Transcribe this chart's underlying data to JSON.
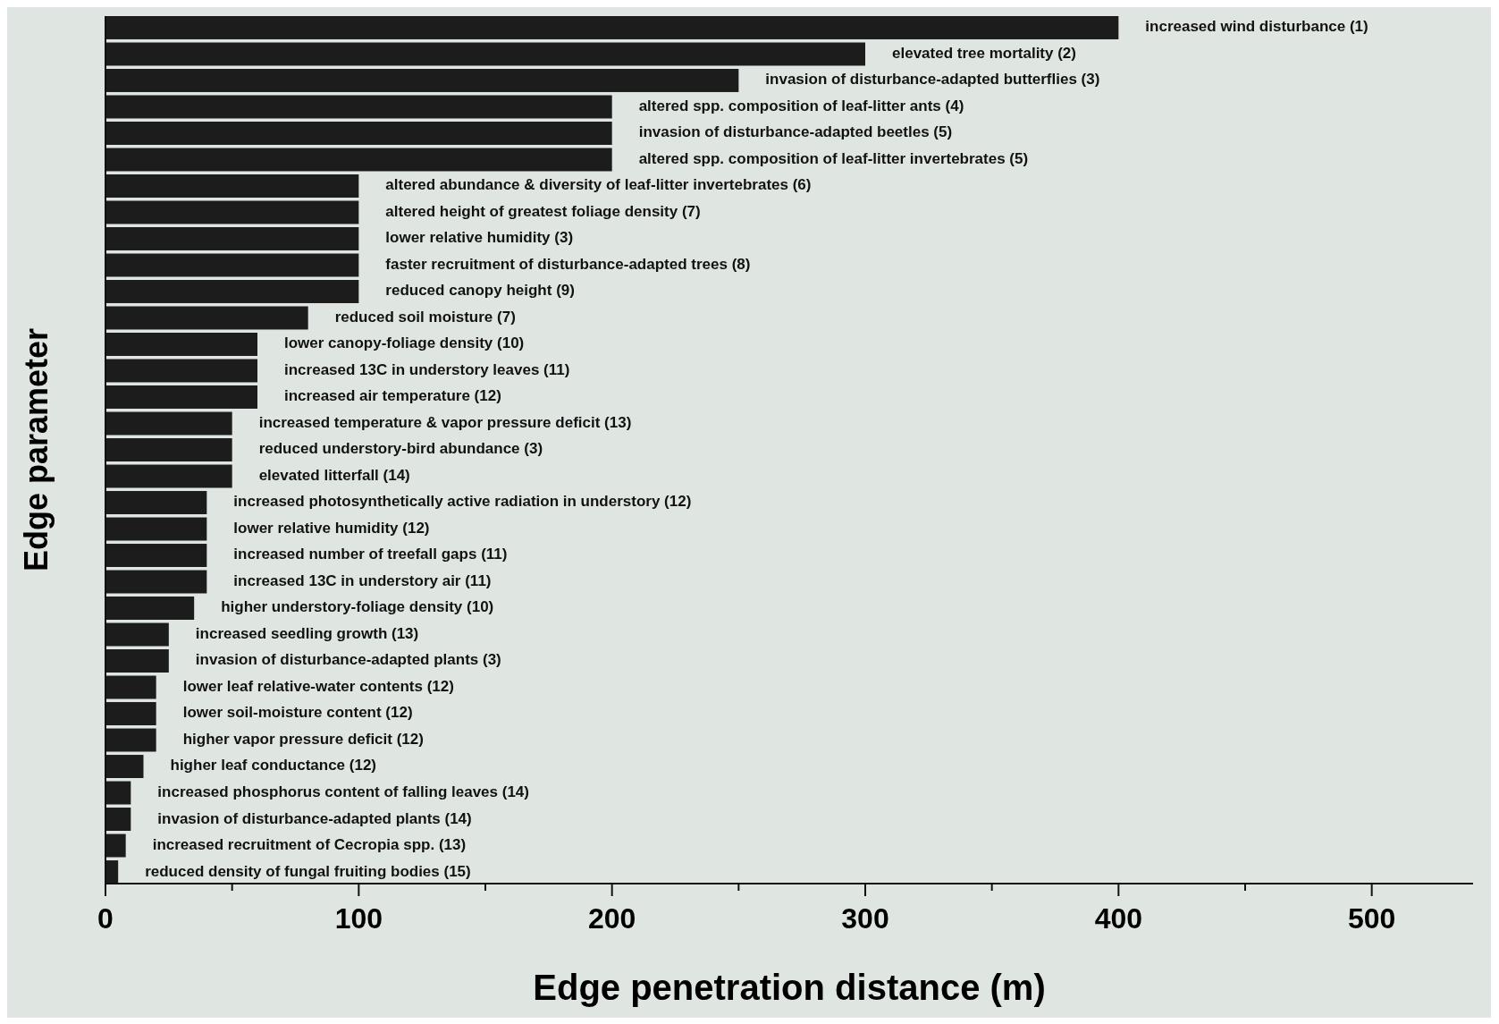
{
  "chart_data": {
    "type": "bar",
    "orientation": "horizontal",
    "xlabel": "Edge penetration distance (m)",
    "ylabel": "Edge parameter",
    "categories": [
      "increased wind disturbance (1)",
      "elevated tree mortality (2)",
      "invasion of disturbance-adapted butterflies (3)",
      "altered spp. composition of leaf-litter ants (4)",
      "invasion of disturbance-adapted beetles (5)",
      "altered spp. composition of leaf-litter invertebrates  (5)",
      "altered abundance & diversity of leaf-litter invertebrates (6)",
      "altered height of greatest foliage density (7)",
      "lower relative humidity (3)",
      "faster recruitment of disturbance-adapted trees (8)",
      "reduced canopy height (9)",
      "reduced soil moisture (7)",
      "lower canopy-foliage density (10)",
      "increased 13C in understory leaves (11)",
      "increased air temperature (12)",
      "increased temperature & vapor pressure deficit (13)",
      "reduced understory-bird abundance (3)",
      "elevated litterfall (14)",
      "increased photosynthetically active radiation in understory (12)",
      "lower relative humidity (12)",
      "increased number of treefall gaps (11)",
      "increased 13C in understory air (11)",
      "higher understory-foliage density (10)",
      "increased seedling growth (13)",
      "invasion of disturbance-adapted plants (3)",
      "lower leaf relative-water contents (12)",
      "lower soil-moisture content (12)",
      "higher vapor pressure deficit (12)",
      "higher leaf conductance (12)",
      "increased phosphorus content of falling leaves (14)",
      "invasion of disturbance-adapted plants (14)",
      "increased recruitment of Cecropia spp. (13)",
      "reduced density of fungal fruiting bodies (15)"
    ],
    "values": [
      400,
      300,
      250,
      200,
      200,
      200,
      100,
      100,
      100,
      100,
      100,
      80,
      60,
      60,
      60,
      50,
      50,
      50,
      40,
      40,
      40,
      40,
      35,
      25,
      25,
      20,
      20,
      20,
      15,
      10,
      10,
      8,
      5
    ],
    "color": "#1c1c1c",
    "xlim": [
      0,
      540
    ],
    "xticks": [
      0,
      {
        "value": 50,
        "label": null
      },
      100,
      {
        "value": 150,
        "label": null
      },
      200,
      {
        "value": 250,
        "label": null
      },
      300,
      {
        "value": 350,
        "label": null
      },
      400,
      {
        "value": 450,
        "label": null
      },
      500
    ],
    "grid": false
  }
}
